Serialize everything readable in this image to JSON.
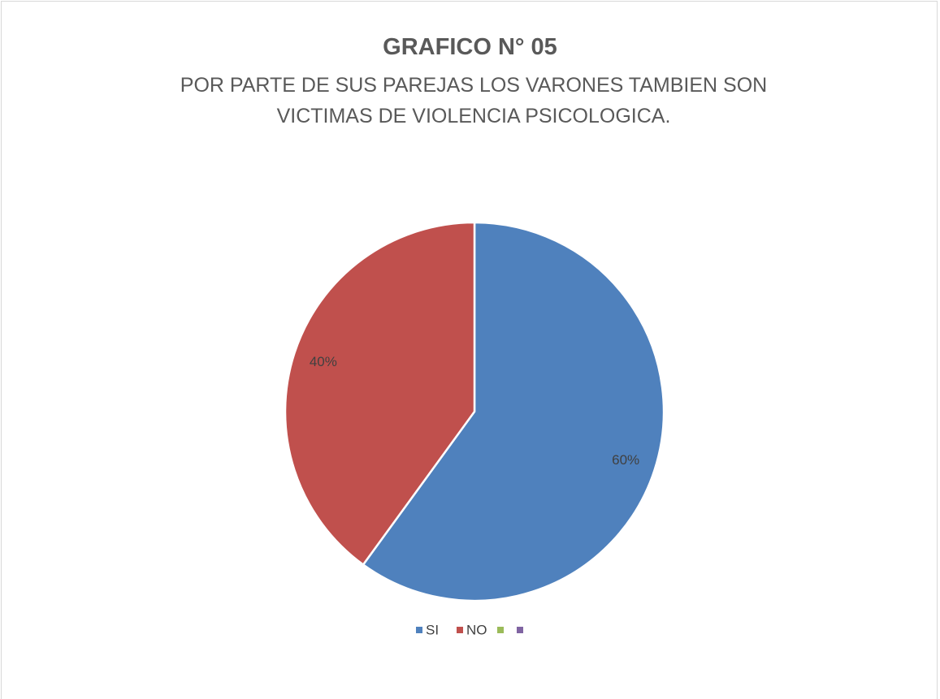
{
  "chart_data": {
    "type": "pie",
    "title": "GRAFICO N° 05",
    "subtitle": "POR PARTE DE SUS PAREJAS LOS VARONES TAMBIEN SON VICTIMAS DE VIOLENCIA PSICOLOGICA.",
    "categories": [
      "SI",
      "NO",
      null,
      null
    ],
    "values": [
      60,
      40,
      0,
      0
    ],
    "value_labels": [
      "60%",
      "40%",
      null,
      null
    ],
    "colors": [
      "#4f81bd",
      "#c0504d",
      "#9bbb59",
      "#8064a2"
    ],
    "legend": "bottom"
  }
}
